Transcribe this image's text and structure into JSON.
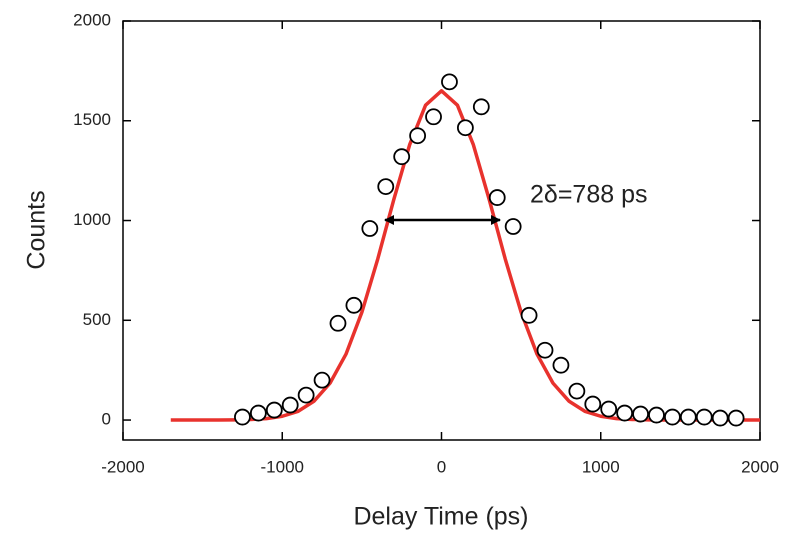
{
  "chart_data": {
    "type": "scatter",
    "xlabel": "Delay Time (ps)",
    "ylabel": "Counts",
    "annotation": "2δ=788 ps",
    "xlim": [
      -2000,
      2000
    ],
    "ylim": [
      -100,
      2000
    ],
    "xticks": [
      -2000,
      -1000,
      0,
      1000,
      2000
    ],
    "yticks": [
      0,
      500,
      1000,
      1500,
      2000
    ],
    "series": [
      {
        "kind": "points",
        "color": "#000000",
        "x": [
          -1250,
          -1150,
          -1050,
          -950,
          -850,
          -750,
          -650,
          -550,
          -450,
          -350,
          -250,
          -150,
          -50,
          50,
          150,
          250,
          350,
          450,
          550,
          650,
          750,
          850,
          950,
          1050,
          1150,
          1250,
          1350,
          1450,
          1550,
          1650,
          1750,
          1850
        ],
        "values": [
          15,
          35,
          50,
          75,
          125,
          200,
          485,
          575,
          960,
          1170,
          1320,
          1425,
          1520,
          1695,
          1465,
          1570,
          1115,
          970,
          525,
          350,
          275,
          145,
          80,
          55,
          35,
          30,
          25,
          15,
          15,
          15,
          10,
          10
        ]
      },
      {
        "kind": "line",
        "color": "#e8322d",
        "x": [
          -1700,
          -1600,
          -1500,
          -1400,
          -1300,
          -1200,
          -1100,
          -1000,
          -900,
          -800,
          -700,
          -600,
          -500,
          -400,
          -300,
          -200,
          -100,
          0,
          100,
          200,
          300,
          400,
          500,
          600,
          700,
          800,
          900,
          1000,
          1100,
          1200,
          1300,
          1400,
          1500,
          1600,
          1700,
          1800,
          1900,
          2000
        ],
        "values": [
          0,
          0,
          0,
          0,
          1,
          3,
          7,
          19,
          44,
          95,
          185,
          330,
          540,
          808,
          1104,
          1380,
          1578,
          1650,
          1578,
          1380,
          1104,
          808,
          540,
          330,
          185,
          95,
          44,
          19,
          7,
          3,
          1,
          0,
          0,
          0,
          0,
          0,
          0,
          0
        ]
      }
    ]
  }
}
